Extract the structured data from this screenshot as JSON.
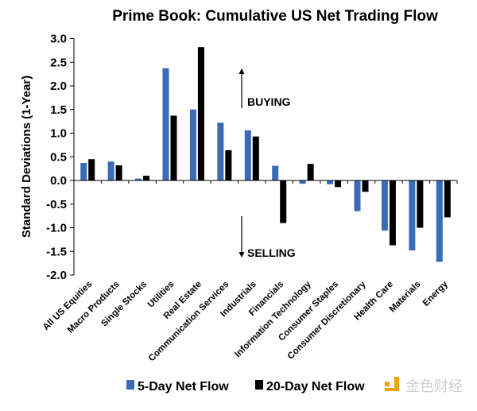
{
  "chart_data": {
    "type": "bar",
    "title": "Prime Book: Cumulative US Net Trading Flow",
    "xlabel": "",
    "ylabel": "Standard Deviations (1-Year)",
    "ylim": [
      -2.0,
      3.0
    ],
    "yticks": [
      "3.0",
      "2.5",
      "2.0",
      "1.5",
      "1.0",
      "0.5",
      "0.0",
      "-0.5",
      "-1.0",
      "-1.5",
      "-2.0"
    ],
    "grid": false,
    "legend_position": "bottom",
    "categories": [
      "All US Equities",
      "Macro Products",
      "Single Stocks",
      "Utilities",
      "Real Estate",
      "Communication Services",
      "Industrials",
      "Financials",
      "Information Technology",
      "Consumer Staples",
      "Consumer Discretionary",
      "Health Care",
      "Materials",
      "Energy"
    ],
    "series": [
      {
        "name": "5-Day Net Flow",
        "color": "#3a6bb5",
        "values": [
          0.37,
          0.4,
          0.04,
          2.37,
          1.5,
          1.22,
          1.06,
          0.31,
          -0.07,
          -0.08,
          -0.65,
          -1.06,
          -1.48,
          -1.72
        ]
      },
      {
        "name": "20-Day Net Flow",
        "color": "#000000",
        "values": [
          0.45,
          0.32,
          0.1,
          1.37,
          2.82,
          0.64,
          0.93,
          -0.9,
          0.35,
          -0.14,
          -0.24,
          -1.37,
          -1.0,
          -0.78
        ]
      }
    ],
    "annotations": {
      "buying": "BUYING",
      "selling": "SELLING"
    }
  },
  "watermark": {
    "text": "金色财经",
    "color": "#f0a500"
  }
}
